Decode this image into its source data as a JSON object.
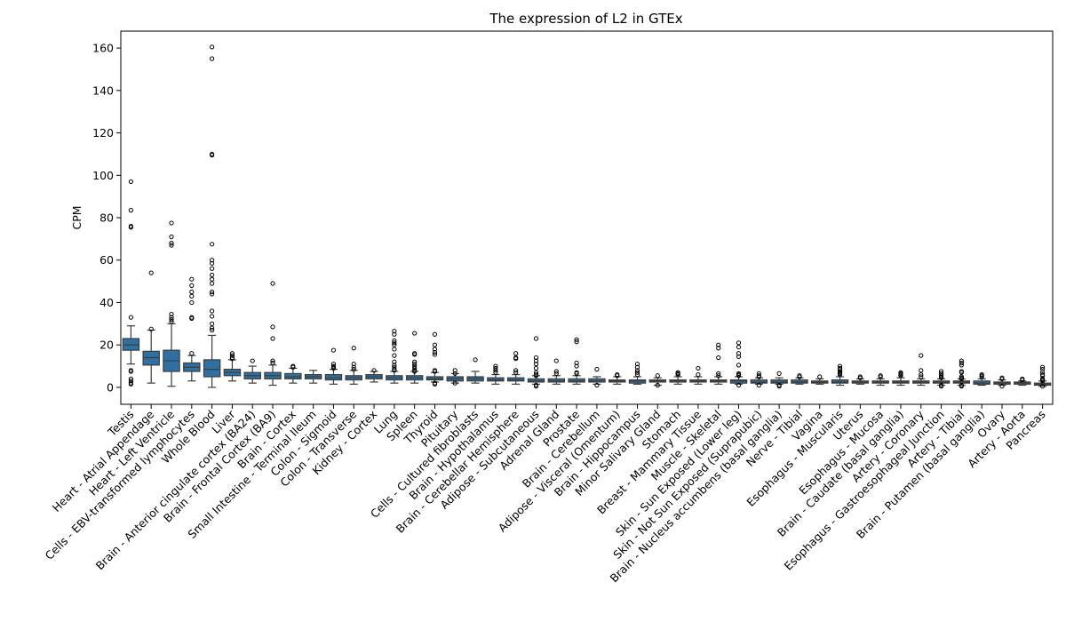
{
  "chart_data": {
    "type": "box",
    "title": "The expression of L2 in GTEx",
    "xlabel": "",
    "ylabel": "CPM",
    "ylim": [
      -8,
      168
    ],
    "yticks": [
      0,
      20,
      40,
      60,
      80,
      100,
      120,
      140,
      160
    ],
    "box_color": "#2e70a1",
    "categories": [
      "Testis",
      "Heart - Atrial Appendage",
      "Heart - Left Ventricle",
      "Cells - EBV-transformed lymphocytes",
      "Whole Blood",
      "Liver",
      "Brain - Anterior cingulate cortex (BA24)",
      "Brain - Frontal Cortex (BA9)",
      "Brain - Cortex",
      "Small Intestine - Terminal Ileum",
      "Colon - Sigmoid",
      "Colon - Transverse",
      "Kidney - Cortex",
      "Lung",
      "Spleen",
      "Thyroid",
      "Pituitary",
      "Cells - Cultured fibroblasts",
      "Brain - Hypothalamus",
      "Brain - Cerebellar Hemisphere",
      "Adipose - Subcutaneous",
      "Adrenal Gland",
      "Prostate",
      "Brain - Cerebellum",
      "Adipose - Visceral (Omentum)",
      "Brain - Hippocampus",
      "Minor Salivary Gland",
      "Stomach",
      "Breast - Mammary Tissue",
      "Muscle - Skeletal",
      "Skin - Sun Exposed (Lower leg)",
      "Skin - Not Sun Exposed (Suprapubic)",
      "Brain - Nucleus accumbens (basal ganglia)",
      "Nerve - Tibial",
      "Vagina",
      "Esophagus - Muscularis",
      "Uterus",
      "Esophagus - Mucosa",
      "Brain - Caudate (basal ganglia)",
      "Artery - Coronary",
      "Esophagus - Gastroesophageal Junction",
      "Artery - Tibial",
      "Brain - Putamen (basal ganglia)",
      "Ovary",
      "Artery - Aorta",
      "Pancreas"
    ],
    "boxes": [
      {
        "whislo": 11,
        "q1": 17.5,
        "med": 20,
        "q3": 23,
        "whishi": 29,
        "fliers": [
          97,
          83.5,
          76,
          75.5,
          33,
          8,
          7.5,
          4,
          3,
          2,
          1.5
        ]
      },
      {
        "whislo": 2,
        "q1": 10.5,
        "med": 14,
        "q3": 17,
        "whishi": 27,
        "fliers": [
          54,
          27.5
        ]
      },
      {
        "whislo": 0.5,
        "q1": 7.5,
        "med": 12.5,
        "q3": 17.5,
        "whishi": 30,
        "fliers": [
          77.5,
          71,
          68,
          67,
          34.5,
          33,
          32,
          31
        ]
      },
      {
        "whislo": 3,
        "q1": 7.5,
        "med": 9.5,
        "q3": 11.5,
        "whishi": 15,
        "fliers": [
          51,
          48,
          45,
          43,
          40,
          33,
          32.5,
          16
        ]
      },
      {
        "whislo": 0,
        "q1": 5,
        "med": 8.5,
        "q3": 13,
        "whishi": 24.5,
        "fliers": [
          160.5,
          155,
          110,
          109.5,
          67.5,
          60,
          58.5,
          56,
          53,
          51,
          49,
          45,
          44,
          36,
          33.5,
          30,
          28,
          27
        ]
      },
      {
        "whislo": 3,
        "q1": 5.5,
        "med": 7,
        "q3": 8.5,
        "whishi": 13,
        "fliers": [
          16,
          15,
          14,
          13.5
        ]
      },
      {
        "whislo": 2,
        "q1": 4,
        "med": 5.5,
        "q3": 7,
        "whishi": 10,
        "fliers": [
          12.5
        ]
      },
      {
        "whislo": 1,
        "q1": 4,
        "med": 5.5,
        "q3": 7,
        "whishi": 10.5,
        "fliers": [
          49,
          28.5,
          23,
          12.5,
          11.5
        ]
      },
      {
        "whislo": 2,
        "q1": 4,
        "med": 5,
        "q3": 6.5,
        "whishi": 9,
        "fliers": [
          10,
          9.5
        ]
      },
      {
        "whislo": 2,
        "q1": 4,
        "med": 5,
        "q3": 6,
        "whishi": 8,
        "fliers": []
      },
      {
        "whislo": 1.5,
        "q1": 3.5,
        "med": 4.5,
        "q3": 6,
        "whishi": 8.5,
        "fliers": [
          17.5,
          11,
          10,
          9.5,
          9
        ]
      },
      {
        "whislo": 1.5,
        "q1": 3.5,
        "med": 4.5,
        "q3": 5.5,
        "whishi": 8,
        "fliers": [
          18.5,
          11,
          9.5,
          8.5
        ]
      },
      {
        "whislo": 2.5,
        "q1": 4,
        "med": 5,
        "q3": 6,
        "whishi": 7.5,
        "fliers": [
          8
        ]
      },
      {
        "whislo": 2,
        "q1": 3.5,
        "med": 4.5,
        "q3": 5.5,
        "whishi": 7.5,
        "fliers": [
          26.5,
          25,
          22,
          21,
          20,
          18,
          15,
          12,
          10.5,
          9.5,
          8.5,
          8
        ]
      },
      {
        "whislo": 2,
        "q1": 3.5,
        "med": 4.5,
        "q3": 5.5,
        "whishi": 7.5,
        "fliers": [
          25.5,
          16,
          15.5,
          12,
          11,
          10,
          9,
          8,
          7.5
        ]
      },
      {
        "whislo": 2.5,
        "q1": 3.5,
        "med": 4,
        "q3": 5,
        "whishi": 7,
        "fliers": [
          25,
          20,
          18,
          16.5,
          15.5,
          8,
          7.5,
          2,
          1.5
        ]
      },
      {
        "whislo": 2,
        "q1": 3,
        "med": 4,
        "q3": 5,
        "whishi": 6.5,
        "fliers": [
          8,
          6.5,
          2
        ]
      },
      {
        "whislo": 2,
        "q1": 3,
        "med": 4,
        "q3": 5,
        "whishi": 7.5,
        "fliers": [
          13
        ]
      },
      {
        "whislo": 1.5,
        "q1": 3,
        "med": 3.5,
        "q3": 4.5,
        "whishi": 6,
        "fliers": [
          10,
          9,
          8,
          7
        ]
      },
      {
        "whislo": 1.5,
        "q1": 3,
        "med": 3.5,
        "q3": 4.5,
        "whishi": 6,
        "fliers": [
          16,
          14,
          13.5,
          8,
          7
        ]
      },
      {
        "whislo": 1.5,
        "q1": 2.5,
        "med": 3,
        "q3": 4,
        "whishi": 5.5,
        "fliers": [
          23,
          14,
          12.5,
          11,
          9,
          7,
          6,
          5.5,
          1,
          0.5
        ]
      },
      {
        "whislo": 1.5,
        "q1": 2.5,
        "med": 3,
        "q3": 4,
        "whishi": 5.5,
        "fliers": [
          12.5,
          7.5,
          6.5
        ]
      },
      {
        "whislo": 1.5,
        "q1": 2.5,
        "med": 3,
        "q3": 4,
        "whishi": 5.5,
        "fliers": [
          22.5,
          21.5,
          11.5,
          10,
          7,
          6.5
        ]
      },
      {
        "whislo": 1.5,
        "q1": 2.5,
        "med": 3,
        "q3": 4,
        "whishi": 5,
        "fliers": [
          8.5,
          1
        ]
      },
      {
        "whislo": 1.5,
        "q1": 2.5,
        "med": 3,
        "q3": 3.5,
        "whishi": 5,
        "fliers": [
          6,
          5.5
        ]
      },
      {
        "whislo": 1.5,
        "q1": 2,
        "med": 3,
        "q3": 3.5,
        "whishi": 5,
        "fliers": [
          11,
          9.5,
          8,
          7,
          6
        ]
      },
      {
        "whislo": 1,
        "q1": 2.5,
        "med": 3,
        "q3": 3.5,
        "whishi": 4.5,
        "fliers": [
          5.5,
          1
        ]
      },
      {
        "whislo": 1.5,
        "q1": 2.5,
        "med": 3,
        "q3": 3.5,
        "whishi": 5,
        "fliers": [
          7,
          6.5,
          6
        ]
      },
      {
        "whislo": 1.5,
        "q1": 2.5,
        "med": 3,
        "q3": 3.5,
        "whishi": 5,
        "fliers": [
          9,
          6
        ]
      },
      {
        "whislo": 1.5,
        "q1": 2.5,
        "med": 3,
        "q3": 3.5,
        "whishi": 5,
        "fliers": [
          20,
          18.5,
          14,
          6.5,
          5.5
        ]
      },
      {
        "whislo": 1.5,
        "q1": 2,
        "med": 3,
        "q3": 3.5,
        "whishi": 5,
        "fliers": [
          21,
          19,
          16,
          14.5,
          10.5,
          6.5,
          6,
          5.5,
          1
        ]
      },
      {
        "whislo": 1.5,
        "q1": 2,
        "med": 2.5,
        "q3": 3.5,
        "whishi": 4.5,
        "fliers": [
          6.5,
          5.5,
          5,
          1
        ]
      },
      {
        "whislo": 1.5,
        "q1": 2,
        "med": 2.5,
        "q3": 3.5,
        "whishi": 4.5,
        "fliers": [
          6.5,
          1,
          0.5
        ]
      },
      {
        "whislo": 1.5,
        "q1": 2,
        "med": 2.5,
        "q3": 3.5,
        "whishi": 4.5,
        "fliers": [
          5.5,
          5
        ]
      },
      {
        "whislo": 1.5,
        "q1": 2,
        "med": 2.5,
        "q3": 3,
        "whishi": 4,
        "fliers": [
          5
        ]
      },
      {
        "whislo": 1,
        "q1": 2,
        "med": 2.5,
        "q3": 3.5,
        "whishi": 5,
        "fliers": [
          10,
          9,
          8.5,
          7.5,
          7,
          6.5,
          6
        ]
      },
      {
        "whislo": 1.5,
        "q1": 2,
        "med": 2.5,
        "q3": 3,
        "whishi": 4,
        "fliers": [
          5,
          4.5
        ]
      },
      {
        "whislo": 1,
        "q1": 2,
        "med": 2.5,
        "q3": 3,
        "whishi": 4,
        "fliers": [
          5.5,
          5
        ]
      },
      {
        "whislo": 1,
        "q1": 2,
        "med": 2.5,
        "q3": 3,
        "whishi": 4.5,
        "fliers": [
          7,
          6.5,
          6,
          5.5
        ]
      },
      {
        "whislo": 1,
        "q1": 2,
        "med": 2.5,
        "q3": 3,
        "whishi": 4,
        "fliers": [
          15,
          8,
          6,
          5
        ]
      },
      {
        "whislo": 1,
        "q1": 2,
        "med": 2.5,
        "q3": 3,
        "whishi": 4,
        "fliers": [
          7.5,
          6.5,
          5.5,
          5,
          4.5,
          1,
          0.5
        ]
      },
      {
        "whislo": 1,
        "q1": 2,
        "med": 2.5,
        "q3": 3,
        "whishi": 4,
        "fliers": [
          12.5,
          11.5,
          10.5,
          7.5,
          7,
          5,
          4.5,
          4,
          1,
          0.5
        ]
      },
      {
        "whislo": 1,
        "q1": 1.5,
        "med": 2,
        "q3": 3,
        "whishi": 4,
        "fliers": [
          6,
          5.5,
          5
        ]
      },
      {
        "whislo": 1,
        "q1": 1.5,
        "med": 2,
        "q3": 2.5,
        "whishi": 3.5,
        "fliers": [
          4.5,
          4,
          0.5
        ]
      },
      {
        "whislo": 1,
        "q1": 1.5,
        "med": 2,
        "q3": 2.5,
        "whishi": 3,
        "fliers": [
          4,
          3.5
        ]
      },
      {
        "whislo": 0.5,
        "q1": 1,
        "med": 1.5,
        "q3": 2,
        "whishi": 3,
        "fliers": [
          9.5,
          8.5,
          7,
          6,
          5.5,
          4,
          3.5,
          3,
          0.5
        ]
      }
    ]
  }
}
